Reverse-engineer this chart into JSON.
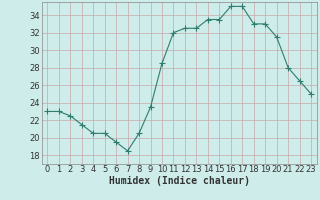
{
  "xlabel": "Humidex (Indice chaleur)",
  "x": [
    0,
    1,
    2,
    3,
    4,
    5,
    6,
    7,
    8,
    9,
    10,
    11,
    12,
    13,
    14,
    15,
    16,
    17,
    18,
    19,
    20,
    21,
    22,
    23
  ],
  "y": [
    23,
    23,
    22.5,
    21.5,
    20.5,
    20.5,
    19.5,
    18.5,
    20.5,
    23.5,
    28.5,
    32,
    32.5,
    32.5,
    33.5,
    33.5,
    35,
    35,
    33,
    33,
    31.5,
    28,
    26.5,
    25
  ],
  "line_color": "#2e7d6e",
  "marker": "s",
  "marker_size": 2.0,
  "background_color": "#ceecea",
  "grid_color": "#b8d8d5",
  "ylim": [
    17,
    35.5
  ],
  "xlim": [
    -0.5,
    23.5
  ],
  "yticks": [
    18,
    20,
    22,
    24,
    26,
    28,
    30,
    32,
    34
  ],
  "xticks": [
    0,
    1,
    2,
    3,
    4,
    5,
    6,
    7,
    8,
    9,
    10,
    11,
    12,
    13,
    14,
    15,
    16,
    17,
    18,
    19,
    20,
    21,
    22,
    23
  ],
  "tick_fontsize": 6,
  "xlabel_fontsize": 7,
  "axis_color": "#888888"
}
